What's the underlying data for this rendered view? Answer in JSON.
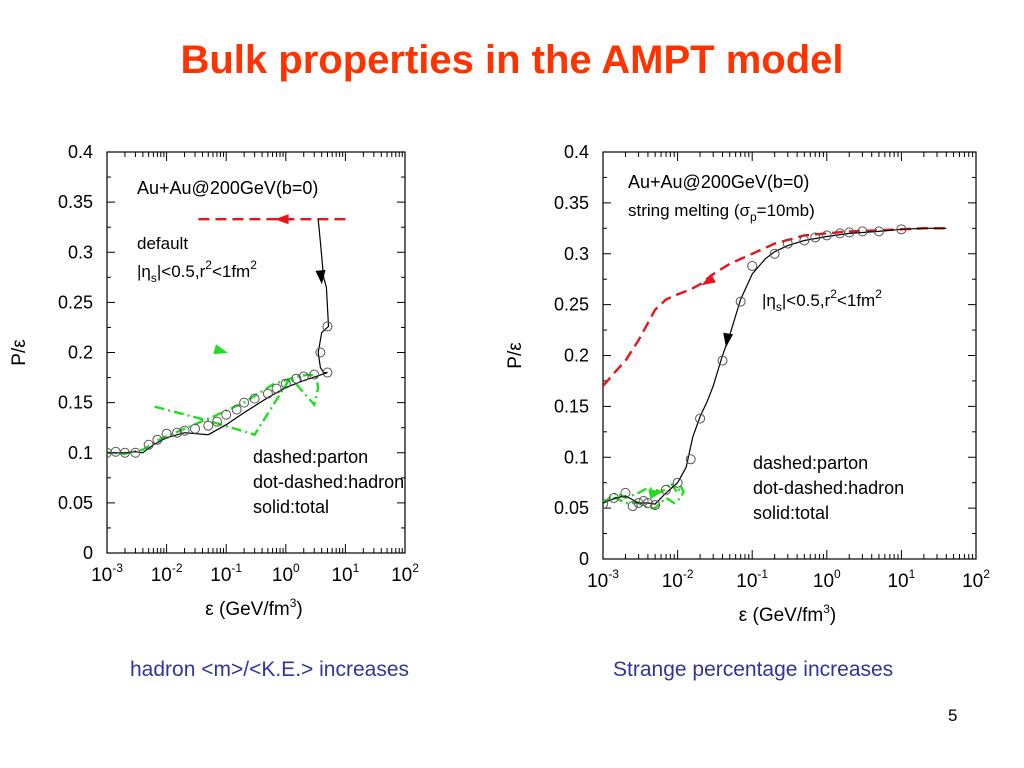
{
  "slide": {
    "title": "Bulk properties in the AMPT model",
    "page_number": "5",
    "left_caption": "hadron <m>/<K.E.> increases",
    "right_caption": "Strange percentage increases"
  },
  "colors": {
    "title": "#ff3300",
    "caption": "#333399",
    "parton": "#e8141b",
    "hadron": "#22dd22",
    "total": "#000000"
  },
  "chart_data": [
    {
      "type": "line",
      "x_scale": "log",
      "xlim": [
        0.001,
        100
      ],
      "ylim": [
        0,
        0.4
      ],
      "xlabel": "ε (GeV/fm3)",
      "ylabel": "P/ε",
      "x_ticks": [
        {
          "base": "10",
          "exp": "-3",
          "v": 0.001
        },
        {
          "base": "10",
          "exp": "-2",
          "v": 0.01
        },
        {
          "base": "10",
          "exp": "-1",
          "v": 0.1
        },
        {
          "base": "10",
          "exp": "0",
          "v": 1
        },
        {
          "base": "10",
          "exp": "1",
          "v": 10
        },
        {
          "base": "10",
          "exp": "2",
          "v": 100
        }
      ],
      "y_ticks": [
        "0",
        "0.05",
        "0.1",
        "0.15",
        "0.2",
        "0.25",
        "0.3",
        "0.35",
        "0.4"
      ],
      "annotations": {
        "system": "Au+Au@200GeV(b=0)",
        "label1": "default",
        "cut": "|ηs|<0.5,r2<1fm2",
        "legend": [
          "dashed:parton",
          "dot-dashed:hadron",
          "solid:total"
        ]
      },
      "series": [
        {
          "name": "parton",
          "style": "dashed",
          "color": "#e8141b",
          "x": [
            10,
            5,
            1,
            0.1,
            0.03
          ],
          "y": [
            0.333,
            0.333,
            0.333,
            0.333,
            0.333
          ]
        },
        {
          "name": "hadron",
          "style": "dot-dashed",
          "color": "#22dd22",
          "x": [
            0.0063,
            0.05,
            0.3,
            1.2,
            3.0,
            3.5,
            3.2,
            2.5,
            1.5,
            0.6,
            0.2,
            0.06,
            0.02,
            0.008,
            0.004,
            0.002,
            0.001
          ],
          "y": [
            0.146,
            0.132,
            0.118,
            0.175,
            0.148,
            0.165,
            0.177,
            0.178,
            0.176,
            0.168,
            0.15,
            0.136,
            0.124,
            0.114,
            0.103,
            0.099,
            0.1
          ]
        },
        {
          "name": "total",
          "style": "solid",
          "color": "#000000",
          "x": [
            3.5,
            3.8,
            4.3,
            4.8,
            5.2,
            4.0,
            3.5,
            3.8,
            4.3,
            5.0,
            4.0,
            2.0,
            1.0,
            0.5,
            0.2,
            0.1,
            0.05,
            0.02,
            0.01,
            0.006,
            0.004,
            0.003,
            0.002,
            0.001
          ],
          "y": [
            0.333,
            0.31,
            0.275,
            0.265,
            0.226,
            0.22,
            0.2,
            0.185,
            0.18,
            0.18,
            0.178,
            0.172,
            0.165,
            0.155,
            0.14,
            0.128,
            0.118,
            0.12,
            0.115,
            0.108,
            0.1,
            0.101,
            0.1,
            0.1
          ]
        },
        {
          "name": "total-markers",
          "style": "markers",
          "x": [
            0.001,
            0.0014,
            0.002,
            0.003,
            0.005,
            0.007,
            0.01,
            0.015,
            0.02,
            0.03,
            0.05,
            0.07,
            0.1,
            0.15,
            0.2,
            0.3,
            0.5,
            0.7,
            1.0,
            1.5,
            2.0,
            3.0,
            5.0,
            5.0,
            3.8
          ],
          "y": [
            0.1,
            0.101,
            0.1,
            0.1,
            0.108,
            0.113,
            0.119,
            0.12,
            0.122,
            0.124,
            0.127,
            0.131,
            0.138,
            0.143,
            0.15,
            0.154,
            0.159,
            0.164,
            0.169,
            0.174,
            0.176,
            0.178,
            0.18,
            0.226,
            0.2
          ]
        }
      ],
      "arrows": [
        {
          "series": "parton",
          "x": 0.7,
          "y": 0.333,
          "dx": -1,
          "dy": 0
        },
        {
          "series": "hadron",
          "x": 0.1,
          "y": 0.2,
          "dx": 1,
          "dy": -0.28
        },
        {
          "series": "total",
          "x": 4.0,
          "y": 0.27,
          "dx": 0.1,
          "dy": -1
        }
      ]
    },
    {
      "type": "line",
      "x_scale": "log",
      "xlim": [
        0.001,
        100
      ],
      "ylim": [
        0,
        0.4
      ],
      "xlabel": "ε (GeV/fm3)",
      "ylabel": "P/ε",
      "x_ticks": [
        {
          "base": "10",
          "exp": "-3",
          "v": 0.001
        },
        {
          "base": "10",
          "exp": "-2",
          "v": 0.01
        },
        {
          "base": "10",
          "exp": "-1",
          "v": 0.1
        },
        {
          "base": "10",
          "exp": "0",
          "v": 1
        },
        {
          "base": "10",
          "exp": "1",
          "v": 10
        },
        {
          "base": "10",
          "exp": "2",
          "v": 100
        }
      ],
      "y_ticks": [
        "0",
        "0.05",
        "0.1",
        "0.15",
        "0.2",
        "0.25",
        "0.3",
        "0.35",
        "0.4"
      ],
      "annotations": {
        "system": "Au+Au@200GeV(b=0)",
        "label1": "string melting (σp=10mb)",
        "cut": "|ηs|<0.5,r2<1fm2",
        "legend": [
          "dashed:parton",
          "dot-dashed:hadron",
          "solid:total"
        ]
      },
      "series": [
        {
          "name": "parton",
          "style": "dashed",
          "color": "#e8141b",
          "x": [
            0.001,
            0.0015,
            0.002,
            0.003,
            0.005,
            0.007,
            0.01,
            0.015,
            0.02,
            0.03,
            0.05,
            0.1,
            0.2,
            0.5,
            1.0,
            2.0,
            5.0,
            10,
            20,
            40
          ],
          "y": [
            0.17,
            0.185,
            0.195,
            0.215,
            0.245,
            0.255,
            0.26,
            0.265,
            0.27,
            0.28,
            0.29,
            0.3,
            0.31,
            0.318,
            0.32,
            0.322,
            0.323,
            0.324,
            0.325,
            0.325
          ]
        },
        {
          "name": "hadron",
          "style": "dot-dashed",
          "color": "#22dd22",
          "x": [
            0.001,
            0.0015,
            0.002,
            0.003,
            0.004,
            0.005,
            0.006,
            0.007,
            0.008,
            0.009,
            0.01,
            0.011,
            0.012,
            0.011,
            0.009,
            0.007,
            0.005,
            0.004,
            0.003,
            0.002,
            0.0015,
            0.001
          ],
          "y": [
            0.055,
            0.065,
            0.06,
            0.065,
            0.07,
            0.068,
            0.066,
            0.069,
            0.075,
            0.07,
            0.065,
            0.072,
            0.066,
            0.06,
            0.055,
            0.06,
            0.05,
            0.05,
            0.055,
            0.055,
            0.06,
            0.058
          ]
        },
        {
          "name": "total",
          "style": "solid",
          "color": "#000000",
          "x": [
            0.001,
            0.0015,
            0.002,
            0.003,
            0.004,
            0.005,
            0.006,
            0.007,
            0.01,
            0.013,
            0.016,
            0.02,
            0.025,
            0.03,
            0.04,
            0.05,
            0.07,
            0.1,
            0.15,
            0.2,
            0.3,
            0.5,
            1.0,
            2.0,
            5.0,
            10,
            20,
            40
          ],
          "y": [
            0.055,
            0.06,
            0.062,
            0.055,
            0.055,
            0.054,
            0.06,
            0.065,
            0.075,
            0.09,
            0.12,
            0.14,
            0.155,
            0.17,
            0.2,
            0.22,
            0.255,
            0.28,
            0.295,
            0.302,
            0.308,
            0.313,
            0.317,
            0.32,
            0.322,
            0.324,
            0.325,
            0.325
          ]
        },
        {
          "name": "total-markers",
          "style": "markers",
          "x": [
            0.001,
            0.0014,
            0.002,
            0.0025,
            0.003,
            0.0035,
            0.004,
            0.005,
            0.007,
            0.01,
            0.015,
            0.02,
            0.04,
            0.07,
            0.1,
            0.2,
            0.3,
            0.5,
            0.7,
            1.0,
            1.5,
            2.0,
            3.0,
            5.0,
            10.0
          ],
          "y": [
            0.054,
            0.06,
            0.065,
            0.052,
            0.055,
            0.057,
            0.055,
            0.053,
            0.068,
            0.075,
            0.098,
            0.138,
            0.195,
            0.253,
            0.288,
            0.3,
            0.31,
            0.313,
            0.316,
            0.318,
            0.32,
            0.321,
            0.322,
            0.322,
            0.324
          ]
        }
      ],
      "arrows": [
        {
          "series": "parton",
          "x": 0.022,
          "y": 0.27,
          "dx": -1,
          "dy": -0.6
        },
        {
          "series": "hadron",
          "x": 0.006,
          "y": 0.066,
          "dx": 1,
          "dy": 0.2
        },
        {
          "series": "total",
          "x": 0.045,
          "y": 0.21,
          "dx": -0.15,
          "dy": -1
        }
      ]
    }
  ]
}
